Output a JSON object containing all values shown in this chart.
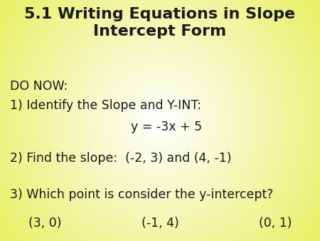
{
  "title_line1": "5.1 Writing Equations in Slope",
  "title_line2": "Intercept Form",
  "title_fontsize": 16,
  "body_fontsize": 12.5,
  "do_now": "DO NOW:",
  "q1_line1": "1) Identify the Slope and Y-INT:",
  "q1_line2": "y = -3x + 5",
  "q2": "2) Find the slope:  (-2, 3) and (4, -1)",
  "q3_line1": "3) Which point is consider the y-intercept?",
  "q3_line2_a": "(3, 0)",
  "q3_line2_b": "(-1, 4)",
  "q3_line2_c": "(0, 1)",
  "text_color": "#1a1a1a",
  "fig_width": 4.5,
  "fig_height": 3.38,
  "dpi": 100
}
